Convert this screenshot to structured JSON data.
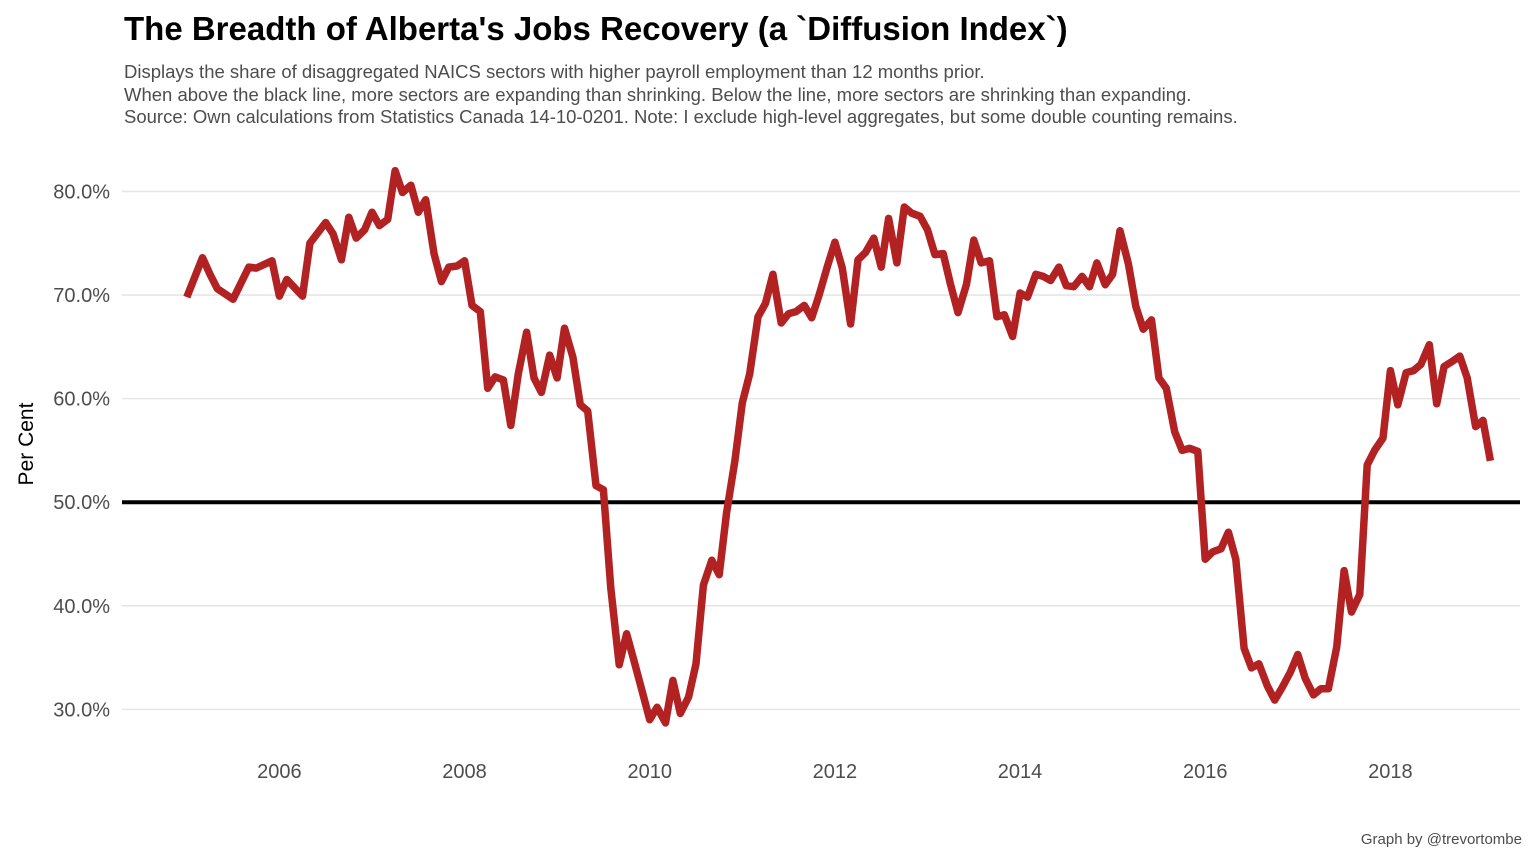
{
  "title": "The Breadth of Alberta's Jobs Recovery (a `Diffusion Index`)",
  "subtitle_lines": [
    "Displays the share of disaggregated NAICS sectors with higher payroll employment than 12 months prior.",
    "When above the black line, more sectors are expanding than shrinking. Below the line, more sectors are shrinking than expanding.",
    "Source: Own calculations from Statistics Canada 14-10-0201. Note: I exclude high-level aggregates, but some double counting remains."
  ],
  "caption": "Graph by @trevortombe",
  "chart_data": {
    "type": "line",
    "title": "The Breadth of Alberta's Jobs Recovery (a `Diffusion Index`)",
    "xlabel": "",
    "ylabel": "Per Cent",
    "xlim": [
      2004.3,
      2019.4
    ],
    "ylim": [
      25.5,
      84
    ],
    "x_ticks": [
      2006,
      2008,
      2010,
      2012,
      2014,
      2016,
      2018
    ],
    "x_tick_labels": [
      "2006",
      "2008",
      "2010",
      "2012",
      "2014",
      "2016",
      "2018"
    ],
    "y_ticks": [
      30,
      40,
      50,
      60,
      70,
      80
    ],
    "y_tick_labels": [
      "30.0%",
      "40.0%",
      "50.0%",
      "60.0%",
      "70.0%",
      "80.0%"
    ],
    "grid": "horizontal",
    "reference_line": {
      "y": 50,
      "color": "#000000"
    },
    "colors": {
      "series": "#b22222",
      "reference": "#000000",
      "grid": "#e6e6e6"
    },
    "series": [
      {
        "color": "#b22222",
        "points": [
          [
            2005.0,
            69.8
          ],
          [
            2005.17,
            73.6
          ],
          [
            2005.25,
            72.0
          ],
          [
            2005.33,
            70.6
          ],
          [
            2005.5,
            69.6
          ],
          [
            2005.67,
            72.7
          ],
          [
            2005.75,
            72.6
          ],
          [
            2005.92,
            73.3
          ],
          [
            2006.0,
            69.9
          ],
          [
            2006.08,
            71.5
          ],
          [
            2006.25,
            69.9
          ],
          [
            2006.33,
            75.0
          ],
          [
            2006.5,
            77.0
          ],
          [
            2006.58,
            75.9
          ],
          [
            2006.67,
            73.4
          ],
          [
            2006.75,
            77.5
          ],
          [
            2006.83,
            75.5
          ],
          [
            2006.92,
            76.3
          ],
          [
            2007.0,
            78.0
          ],
          [
            2007.08,
            76.7
          ],
          [
            2007.17,
            77.3
          ],
          [
            2007.25,
            82.0
          ],
          [
            2007.33,
            79.9
          ],
          [
            2007.42,
            80.6
          ],
          [
            2007.5,
            78.0
          ],
          [
            2007.58,
            79.2
          ],
          [
            2007.67,
            74.0
          ],
          [
            2007.75,
            71.3
          ],
          [
            2007.83,
            72.7
          ],
          [
            2007.92,
            72.8
          ],
          [
            2008.0,
            73.3
          ],
          [
            2008.08,
            69.0
          ],
          [
            2008.17,
            68.4
          ],
          [
            2008.25,
            61.0
          ],
          [
            2008.33,
            62.1
          ],
          [
            2008.42,
            61.8
          ],
          [
            2008.5,
            57.4
          ],
          [
            2008.58,
            62.4
          ],
          [
            2008.67,
            66.4
          ],
          [
            2008.75,
            62.0
          ],
          [
            2008.83,
            60.6
          ],
          [
            2008.92,
            64.2
          ],
          [
            2009.0,
            62.0
          ],
          [
            2009.08,
            66.8
          ],
          [
            2009.17,
            64.0
          ],
          [
            2009.25,
            59.4
          ],
          [
            2009.33,
            58.8
          ],
          [
            2009.42,
            51.6
          ],
          [
            2009.5,
            51.2
          ],
          [
            2009.58,
            41.7
          ],
          [
            2009.67,
            34.3
          ],
          [
            2009.75,
            37.3
          ],
          [
            2009.83,
            34.7
          ],
          [
            2009.92,
            31.7
          ],
          [
            2010.0,
            29.0
          ],
          [
            2010.08,
            30.2
          ],
          [
            2010.17,
            28.7
          ],
          [
            2010.25,
            32.8
          ],
          [
            2010.33,
            29.6
          ],
          [
            2010.42,
            31.2
          ],
          [
            2010.5,
            34.4
          ],
          [
            2010.58,
            42.0
          ],
          [
            2010.67,
            44.4
          ],
          [
            2010.75,
            43.0
          ],
          [
            2010.83,
            49.0
          ],
          [
            2010.92,
            54.0
          ],
          [
            2011.0,
            59.6
          ],
          [
            2011.08,
            62.4
          ],
          [
            2011.17,
            67.9
          ],
          [
            2011.25,
            69.2
          ],
          [
            2011.33,
            72.0
          ],
          [
            2011.42,
            67.3
          ],
          [
            2011.5,
            68.2
          ],
          [
            2011.58,
            68.4
          ],
          [
            2011.67,
            69.0
          ],
          [
            2011.75,
            67.8
          ],
          [
            2011.83,
            70.0
          ],
          [
            2011.92,
            72.8
          ],
          [
            2012.0,
            75.1
          ],
          [
            2012.08,
            72.6
          ],
          [
            2012.17,
            67.2
          ],
          [
            2012.25,
            73.4
          ],
          [
            2012.33,
            74.1
          ],
          [
            2012.42,
            75.5
          ],
          [
            2012.5,
            72.7
          ],
          [
            2012.58,
            77.4
          ],
          [
            2012.67,
            73.1
          ],
          [
            2012.75,
            78.5
          ],
          [
            2012.83,
            77.9
          ],
          [
            2012.92,
            77.6
          ],
          [
            2013.0,
            76.3
          ],
          [
            2013.08,
            73.9
          ],
          [
            2013.17,
            74.0
          ],
          [
            2013.25,
            71.0
          ],
          [
            2013.33,
            68.3
          ],
          [
            2013.42,
            71.0
          ],
          [
            2013.5,
            75.3
          ],
          [
            2013.58,
            73.1
          ],
          [
            2013.67,
            73.3
          ],
          [
            2013.75,
            67.9
          ],
          [
            2013.83,
            68.1
          ],
          [
            2013.92,
            66.0
          ],
          [
            2014.0,
            70.2
          ],
          [
            2014.08,
            69.8
          ],
          [
            2014.17,
            72.0
          ],
          [
            2014.25,
            71.8
          ],
          [
            2014.33,
            71.4
          ],
          [
            2014.42,
            72.7
          ],
          [
            2014.5,
            70.9
          ],
          [
            2014.58,
            70.8
          ],
          [
            2014.67,
            71.8
          ],
          [
            2014.75,
            70.8
          ],
          [
            2014.83,
            73.1
          ],
          [
            2014.92,
            71.0
          ],
          [
            2015.0,
            72.0
          ],
          [
            2015.08,
            76.2
          ],
          [
            2015.17,
            73.0
          ],
          [
            2015.25,
            68.9
          ],
          [
            2015.33,
            66.7
          ],
          [
            2015.42,
            67.6
          ],
          [
            2015.5,
            62.0
          ],
          [
            2015.58,
            61.0
          ],
          [
            2015.67,
            56.8
          ],
          [
            2015.75,
            55.0
          ],
          [
            2015.83,
            55.2
          ],
          [
            2015.92,
            54.9
          ],
          [
            2016.0,
            44.5
          ],
          [
            2016.08,
            45.2
          ],
          [
            2016.17,
            45.5
          ],
          [
            2016.25,
            47.1
          ],
          [
            2016.33,
            44.5
          ],
          [
            2016.42,
            35.9
          ],
          [
            2016.5,
            34.0
          ],
          [
            2016.58,
            34.4
          ],
          [
            2016.67,
            32.3
          ],
          [
            2016.75,
            30.9
          ],
          [
            2016.83,
            32.1
          ],
          [
            2016.92,
            33.6
          ],
          [
            2017.0,
            35.3
          ],
          [
            2017.08,
            33.0
          ],
          [
            2017.17,
            31.4
          ],
          [
            2017.25,
            32.0
          ],
          [
            2017.33,
            32.0
          ],
          [
            2017.42,
            36.0
          ],
          [
            2017.5,
            43.4
          ],
          [
            2017.58,
            39.4
          ],
          [
            2017.67,
            41.1
          ],
          [
            2017.75,
            53.6
          ],
          [
            2017.83,
            55.0
          ],
          [
            2017.92,
            56.2
          ],
          [
            2018.0,
            62.7
          ],
          [
            2018.08,
            59.4
          ],
          [
            2018.17,
            62.5
          ],
          [
            2018.25,
            62.7
          ],
          [
            2018.33,
            63.3
          ],
          [
            2018.42,
            65.2
          ],
          [
            2018.5,
            59.5
          ],
          [
            2018.58,
            63.1
          ],
          [
            2018.67,
            63.6
          ],
          [
            2018.75,
            64.1
          ],
          [
            2018.83,
            62.0
          ],
          [
            2018.92,
            57.3
          ],
          [
            2019.0,
            57.9
          ],
          [
            2019.08,
            54.0
          ]
        ]
      }
    ]
  }
}
